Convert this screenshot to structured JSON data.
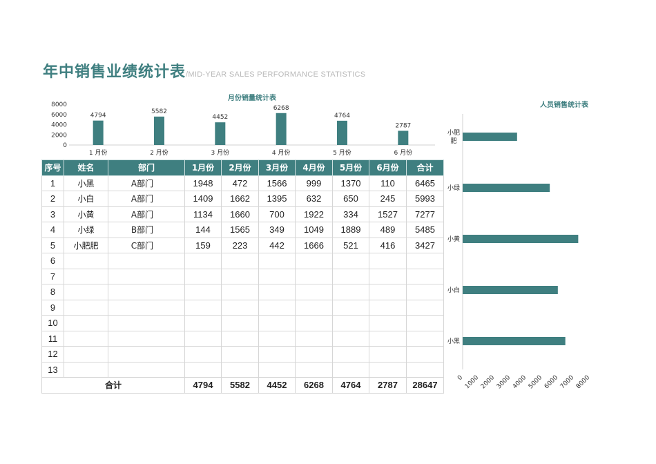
{
  "title": {
    "main": "年中销售业绩统计表",
    "sub": "/MID-YEAR SALES PERFORMANCE STATISTICS"
  },
  "colors": {
    "accent": "#3f7f80",
    "header_text": "#ffffff",
    "subtitle": "#b9b9b9",
    "grid": "#d6d6d6"
  },
  "table": {
    "headers": [
      "序号",
      "姓名",
      "部门",
      "1月份",
      "2月份",
      "3月份",
      "4月份",
      "5月份",
      "6月份",
      "合计"
    ],
    "rows": [
      [
        "1",
        "小黑",
        "A部门",
        "1948",
        "472",
        "1566",
        "999",
        "1370",
        "110",
        "6465"
      ],
      [
        "2",
        "小白",
        "A部门",
        "1409",
        "1662",
        "1395",
        "632",
        "650",
        "245",
        "5993"
      ],
      [
        "3",
        "小黄",
        "A部门",
        "1134",
        "1660",
        "700",
        "1922",
        "334",
        "1527",
        "7277"
      ],
      [
        "4",
        "小绿",
        "B部门",
        "144",
        "1565",
        "349",
        "1049",
        "1889",
        "489",
        "5485"
      ],
      [
        "5",
        "小肥肥",
        "C部门",
        "159",
        "223",
        "442",
        "1666",
        "521",
        "416",
        "3427"
      ],
      [
        "6",
        "",
        "",
        "",
        "",
        "",
        "",
        "",
        "",
        ""
      ],
      [
        "7",
        "",
        "",
        "",
        "",
        "",
        "",
        "",
        "",
        ""
      ],
      [
        "8",
        "",
        "",
        "",
        "",
        "",
        "",
        "",
        "",
        ""
      ],
      [
        "9",
        "",
        "",
        "",
        "",
        "",
        "",
        "",
        "",
        ""
      ],
      [
        "10",
        "",
        "",
        "",
        "",
        "",
        "",
        "",
        "",
        ""
      ],
      [
        "11",
        "",
        "",
        "",
        "",
        "",
        "",
        "",
        "",
        ""
      ],
      [
        "12",
        "",
        "",
        "",
        "",
        "",
        "",
        "",
        "",
        ""
      ],
      [
        "13",
        "",
        "",
        "",
        "",
        "",
        "",
        "",
        "",
        ""
      ]
    ],
    "total_label": "合计",
    "totals": [
      "4794",
      "5582",
      "4452",
      "6268",
      "4764",
      "2787",
      "28647"
    ]
  },
  "chart_data": [
    {
      "type": "bar",
      "title": "月份销量统计表",
      "categories": [
        "1 月份",
        "2 月份",
        "3 月份",
        "4 月份",
        "5 月份",
        "6 月份"
      ],
      "values": [
        4794,
        5582,
        4452,
        6268,
        4764,
        2787
      ],
      "ylim": [
        0,
        8000
      ],
      "yticks": [
        "0",
        "2000",
        "4000",
        "6000",
        "8000"
      ],
      "xlabel": "",
      "ylabel": "",
      "grid": false
    },
    {
      "type": "bar",
      "orientation": "horizontal",
      "title": "人员销售统计表",
      "categories": [
        "小肥肥",
        "小绿",
        "小黄",
        "小白",
        "小黑"
      ],
      "category_labels": [
        [
          "小肥",
          "肥"
        ],
        [
          "小绿"
        ],
        [
          "小黄"
        ],
        [
          "小白"
        ],
        [
          "小黑"
        ]
      ],
      "values": [
        3427,
        5485,
        7277,
        5993,
        6465
      ],
      "xlim": [
        0,
        8000
      ],
      "xticks": [
        "0",
        "1000",
        "2000",
        "3000",
        "4000",
        "5000",
        "6000",
        "7000",
        "8000"
      ],
      "xlabel": "",
      "ylabel": "",
      "grid": false
    }
  ]
}
